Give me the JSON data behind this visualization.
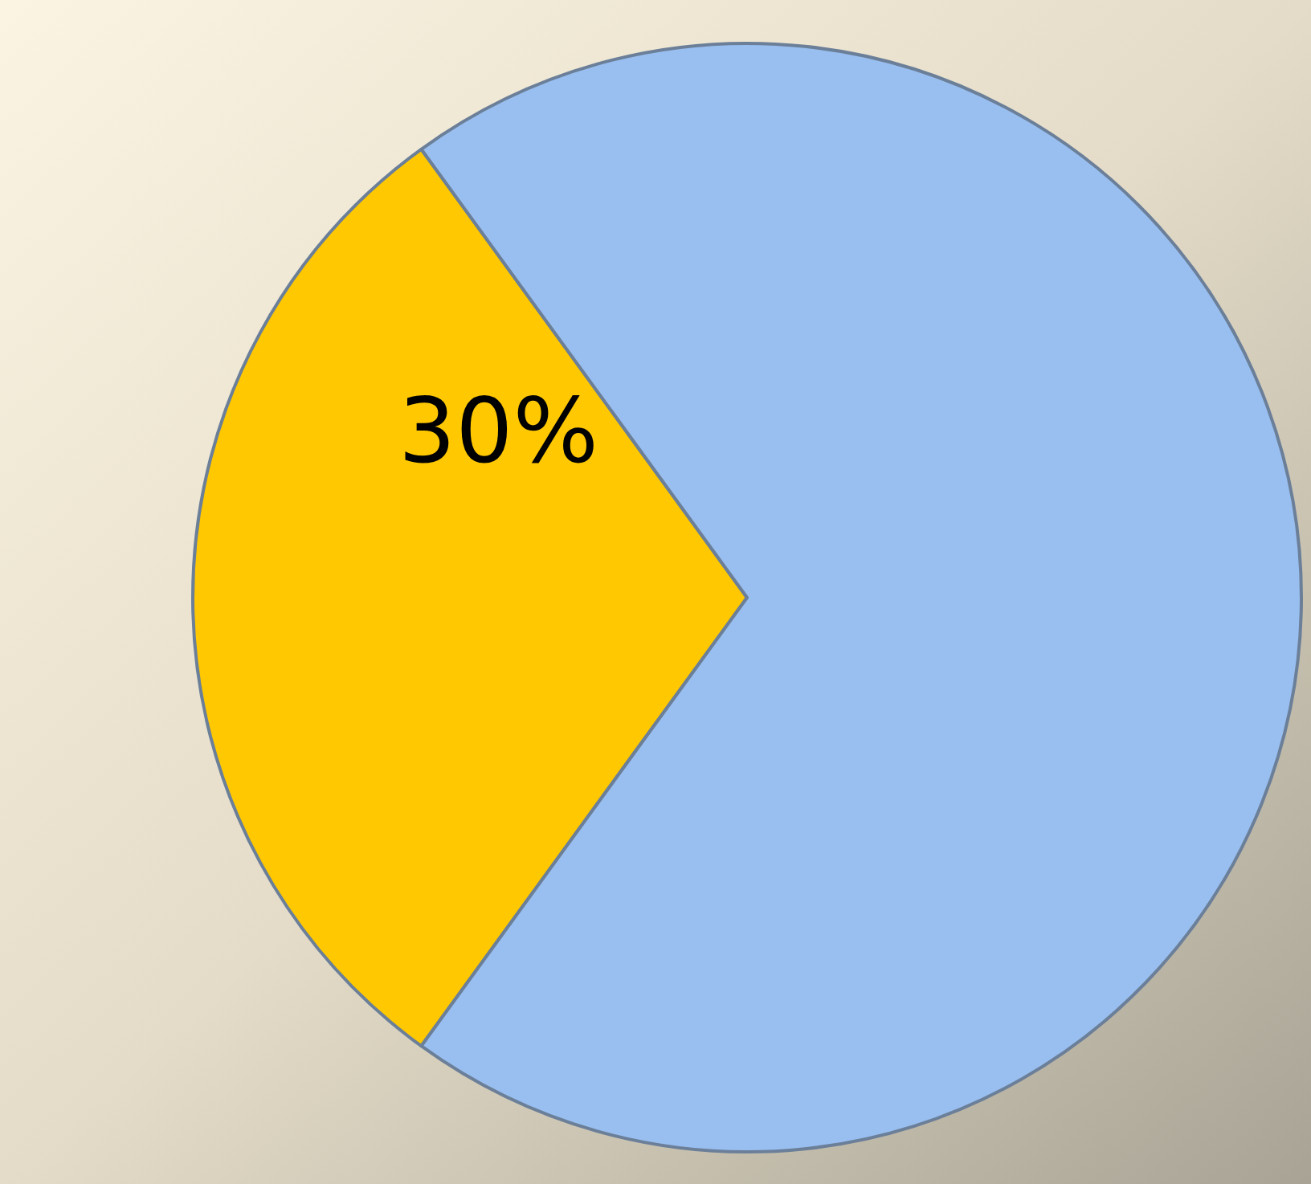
{
  "chart_data": {
    "type": "pie",
    "categories": [
      null,
      null
    ],
    "values": [
      30,
      70
    ],
    "colors": [
      "#ffc800",
      "#99bff0"
    ],
    "value_labels": [
      "30%",
      null
    ]
  }
}
